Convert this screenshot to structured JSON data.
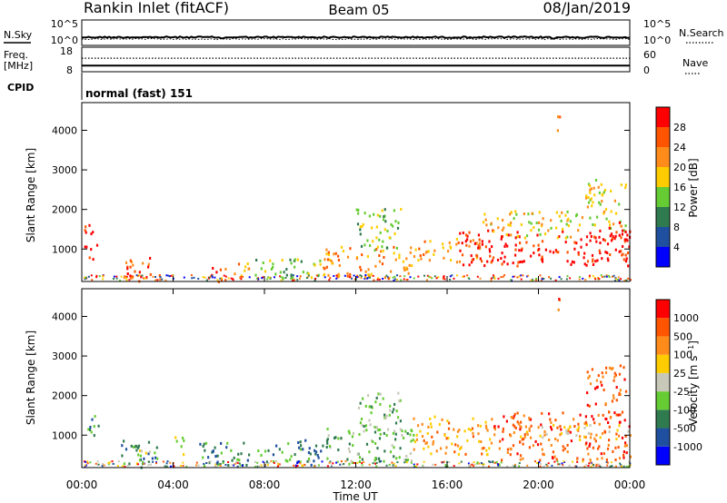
{
  "header": {
    "station": "Rankin Inlet (fitACF)",
    "beam": "Beam 05",
    "date": "08/Jan/2019"
  },
  "left_labels": {
    "nsky": "N.Sky",
    "freq_line1": "Freq.",
    "freq_line2": "[MHz]",
    "cpid": "CPID"
  },
  "right_labels": {
    "nsearch": "N.Search",
    "nave": "Nave"
  },
  "cpid_text": "normal (fast) 151",
  "colors": {
    "power": [
      "#0000ff",
      "#1f4f9f",
      "#2f7a4f",
      "#66cc33",
      "#ffcc00",
      "#ff8c1a",
      "#ff5500",
      "#ff0000"
    ],
    "velocity": [
      "#0000ff",
      "#1f4f9f",
      "#2f7a4f",
      "#66cc33",
      "#c8c8b8",
      "#ffcc00",
      "#ff8c1a",
      "#ff5500",
      "#ff0000"
    ]
  },
  "chart_data": [
    {
      "type": "line",
      "panel": "noise",
      "series": [
        {
          "name": "N.Sky"
        },
        {
          "name": "N.Search"
        }
      ],
      "y_left_ticks": [
        "10^5",
        "10^0"
      ],
      "y_right_ticks": [
        "10^5",
        "10^0"
      ],
      "scale": "log",
      "x_range": [
        "00:00",
        "00:00"
      ]
    },
    {
      "type": "line",
      "panel": "frequency",
      "series": [
        {
          "name": "Freq.",
          "value_approx": 10.5
        },
        {
          "name": "Nave",
          "value_approx": 33
        }
      ],
      "y_left_ticks": [
        "18",
        "8"
      ],
      "y_right_ticks": [
        "60",
        "0"
      ]
    },
    {
      "type": "heatmap",
      "panel": "power",
      "ylabel": "Slant Range [km]",
      "y_ticks": [
        "4000",
        "3000",
        "2000",
        "1000"
      ],
      "ylim": [
        180,
        4700
      ],
      "colorbar_label": "Power [dB]",
      "colorbar_ticks": [
        "28",
        "24",
        "20",
        "16",
        "12",
        "8",
        "4"
      ],
      "colorbar_range": [
        0,
        32
      ],
      "scatter_regions": [
        {
          "t": [
            0.1,
            0.7
          ],
          "r": [
            750,
            1650
          ],
          "level": 28
        },
        {
          "t": [
            1.7,
            3.1
          ],
          "r": [
            200,
            800
          ],
          "level": 26
        },
        {
          "t": [
            3.1,
            3.5
          ],
          "r": [
            200,
            400
          ],
          "level": 24
        },
        {
          "t": [
            5.1,
            6.3
          ],
          "r": [
            200,
            550
          ],
          "level": 24
        },
        {
          "t": [
            6.5,
            7.3
          ],
          "r": [
            250,
            700
          ],
          "level": 22
        },
        {
          "t": [
            7.5,
            10.5
          ],
          "r": [
            250,
            800
          ],
          "level": 14
        },
        {
          "t": [
            10.5,
            14.5
          ],
          "r": [
            300,
            1100
          ],
          "level": 22
        },
        {
          "t": [
            12.0,
            14.0
          ],
          "r": [
            1000,
            2100
          ],
          "level": 12
        },
        {
          "t": [
            14.5,
            17.5
          ],
          "r": [
            700,
            1300
          ],
          "level": 20
        },
        {
          "t": [
            16.5,
            24.0
          ],
          "r": [
            600,
            1500
          ],
          "level": 28
        },
        {
          "t": [
            17.5,
            22.0
          ],
          "r": [
            1300,
            2000
          ],
          "level": 16
        },
        {
          "t": [
            22.0,
            23.8
          ],
          "r": [
            1500,
            2800
          ],
          "level": 18
        },
        {
          "t": [
            23.0,
            24.0
          ],
          "r": [
            700,
            1700
          ],
          "level": 30
        },
        {
          "t": [
            20.6,
            20.9
          ],
          "r": [
            4000,
            4500
          ],
          "level": 20
        }
      ]
    },
    {
      "type": "heatmap",
      "panel": "velocity",
      "ylabel": "Slant Range [km]",
      "y_ticks": [
        "4000",
        "3000",
        "2000",
        "1000"
      ],
      "ylim": [
        180,
        4700
      ],
      "colorbar_label": "Velocity [m s-1]",
      "colorbar_ticks": [
        "1000",
        "500",
        "100",
        "25",
        "-25",
        "-100",
        "-500",
        "-1000"
      ],
      "scatter_regions": [
        {
          "t": [
            0.1,
            0.7
          ],
          "r": [
            900,
            1600
          ],
          "level": 2
        },
        {
          "t": [
            1.7,
            3.3
          ],
          "r": [
            200,
            900
          ],
          "level": 2
        },
        {
          "t": [
            2.3,
            3.0
          ],
          "r": [
            300,
            800
          ],
          "level": 4
        },
        {
          "t": [
            4.0,
            4.5
          ],
          "r": [
            500,
            1000
          ],
          "level": 4
        },
        {
          "t": [
            5.0,
            10.5
          ],
          "r": [
            250,
            900
          ],
          "level": 2
        },
        {
          "t": [
            10.5,
            14.5
          ],
          "r": [
            300,
            1200
          ],
          "level": 3
        },
        {
          "t": [
            12.0,
            14.0
          ],
          "r": [
            1000,
            2100
          ],
          "level": 3
        },
        {
          "t": [
            14.5,
            18.0
          ],
          "r": [
            500,
            1500
          ],
          "level": 6
        },
        {
          "t": [
            18.0,
            24.0
          ],
          "r": [
            400,
            1600
          ],
          "level": 7
        },
        {
          "t": [
            19.0,
            24.0
          ],
          "r": [
            900,
            1300
          ],
          "level": 5
        },
        {
          "t": [
            22.0,
            23.8
          ],
          "r": [
            1500,
            2800
          ],
          "level": 7
        },
        {
          "t": [
            20.6,
            20.9
          ],
          "r": [
            4000,
            4500
          ],
          "level": 7
        }
      ]
    }
  ],
  "x_axis": {
    "ticks": [
      "00:00",
      "04:00",
      "08:00",
      "12:00",
      "16:00",
      "20:00",
      "00:00"
    ],
    "label": "Time UT"
  }
}
